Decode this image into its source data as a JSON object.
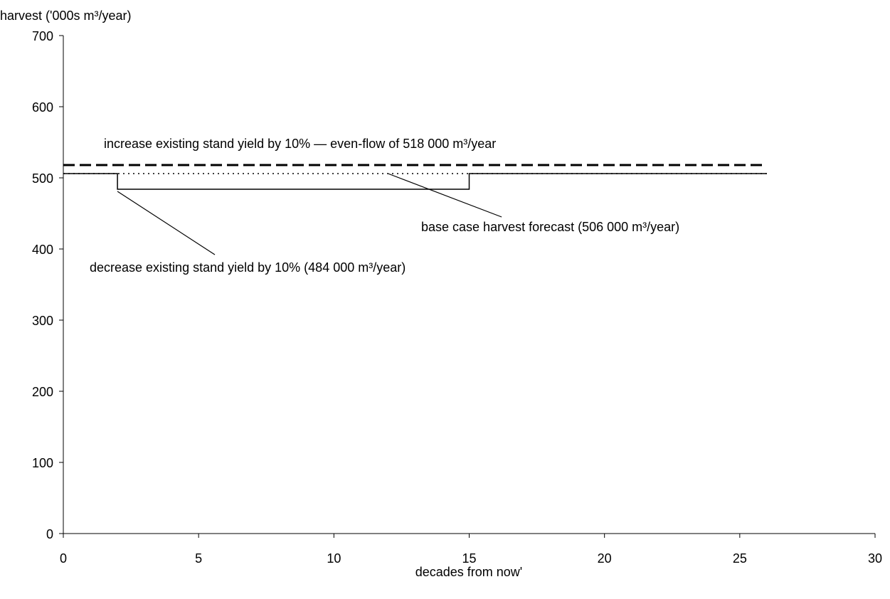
{
  "chart_data": {
    "type": "line",
    "title": "",
    "xlabel": "decades from now'",
    "ylabel": "harvest ('000s m³/year)",
    "xlim": [
      0,
      30
    ],
    "ylim": [
      0,
      700
    ],
    "x_ticks": [
      0,
      5,
      10,
      15,
      20,
      25,
      30
    ],
    "y_ticks": [
      0,
      100,
      200,
      300,
      400,
      500,
      600,
      700
    ],
    "grid": false,
    "legend": "none",
    "series": [
      {
        "style": "dashed",
        "color": "#000000",
        "x": [
          0,
          26
        ],
        "y": [
          518,
          518
        ]
      },
      {
        "style": "dotted",
        "color": "#000000",
        "x": [
          0,
          26
        ],
        "y": [
          506,
          506
        ]
      },
      {
        "style": "solid",
        "color": "#000000",
        "x": [
          0,
          2,
          2,
          15,
          15,
          26
        ],
        "y": [
          506,
          506,
          484,
          484,
          506,
          506
        ]
      }
    ],
    "annotations": [
      {
        "id": "increase",
        "text": "increase existing stand yield by 10% — even-flow of 518 000 m³/year"
      },
      {
        "id": "base",
        "text": "base case harvest forecast (506 000 m³/year)"
      },
      {
        "id": "decrease",
        "text": "decrease existing stand yield by 10% (484 000 m³/year)"
      }
    ]
  }
}
